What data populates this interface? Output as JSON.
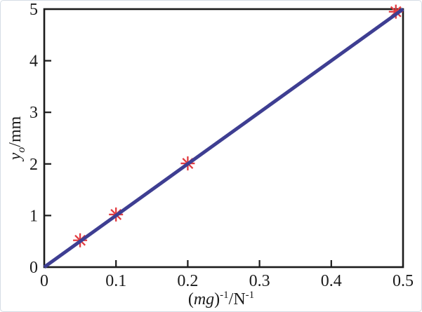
{
  "figure": {
    "background": "#ffffff",
    "border_color": "#d5dce5"
  },
  "chart_data": {
    "type": "scatter",
    "title": "",
    "xlabel": "(mg)⁻¹/N⁻¹",
    "ylabel": "y_o/mm",
    "xlabel_parts": [
      {
        "t": "(",
        "style": "normal"
      },
      {
        "t": "mg",
        "style": "italic"
      },
      {
        "t": ")",
        "style": "normal"
      },
      {
        "t": "-1",
        "style": "sup"
      },
      {
        "t": "/N",
        "style": "normal"
      },
      {
        "t": "-1",
        "style": "sup"
      }
    ],
    "ylabel_parts": [
      {
        "t": "y",
        "style": "italic"
      },
      {
        "t": "o",
        "style": "sub-italic"
      },
      {
        "t": "/mm",
        "style": "normal"
      }
    ],
    "xlim": [
      0,
      0.5
    ],
    "ylim": [
      0,
      5
    ],
    "xticks": [
      0,
      0.1,
      0.2,
      0.3,
      0.4,
      0.5
    ],
    "xtick_labels": [
      "0",
      "0.1",
      "0.2",
      "0.3",
      "0.4",
      "0.5"
    ],
    "yticks": [
      0,
      1,
      2,
      3,
      4,
      5
    ],
    "ytick_labels": [
      "0",
      "1",
      "2",
      "3",
      "4",
      "5"
    ],
    "grid": false,
    "legend": "none",
    "axes_color": "#1b1b1b",
    "series": [
      {
        "name": "measured-points",
        "type": "scatter",
        "marker": "asterisk",
        "color": "#e23b40",
        "x": [
          0.05,
          0.1,
          0.2,
          0.49
        ],
        "y": [
          0.52,
          1.02,
          2.01,
          4.95
        ]
      },
      {
        "name": "linear-fit",
        "type": "line",
        "color": "#3e3e92",
        "width": 5,
        "x": [
          0,
          0.5
        ],
        "y": [
          0,
          5.0
        ]
      }
    ]
  }
}
